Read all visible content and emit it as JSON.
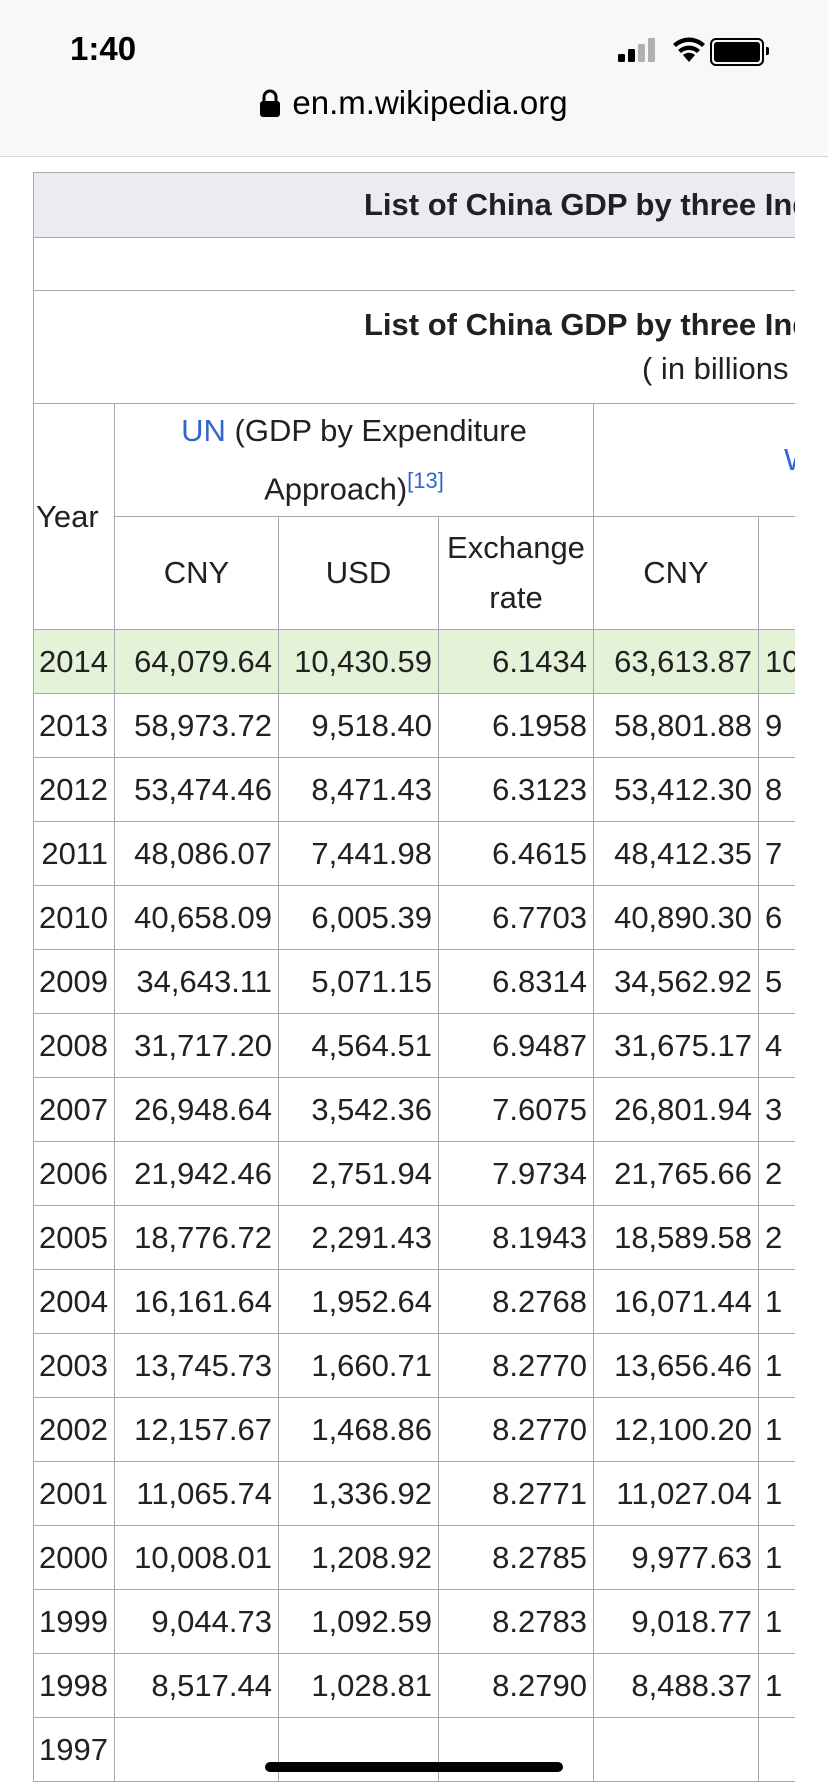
{
  "status": {
    "time": "1:40"
  },
  "browser": {
    "url": "en.m.wikipedia.org"
  },
  "table": {
    "title": "List of China GDP by three Industries",
    "subtitle": "( in billions",
    "group1": {
      "link": "UN",
      "text": " (GDP by Expenditure Approach)",
      "ref": "[13]"
    },
    "group2_link": "W",
    "year_header": "Year",
    "col_headers": [
      "CNY",
      "USD",
      "Exchange rate",
      "CNY",
      ""
    ],
    "rows": [
      [
        "2014",
        "64,079.64",
        "10,430.59",
        "6.1434",
        "63,613.87",
        "10"
      ],
      [
        "2013",
        "58,973.72",
        "9,518.40",
        "6.1958",
        "58,801.88",
        "9"
      ],
      [
        "2012",
        "53,474.46",
        "8,471.43",
        "6.3123",
        "53,412.30",
        "8"
      ],
      [
        "2011",
        "48,086.07",
        "7,441.98",
        "6.4615",
        "48,412.35",
        "7"
      ],
      [
        "2010",
        "40,658.09",
        "6,005.39",
        "6.7703",
        "40,890.30",
        "6"
      ],
      [
        "2009",
        "34,643.11",
        "5,071.15",
        "6.8314",
        "34,562.92",
        "5"
      ],
      [
        "2008",
        "31,717.20",
        "4,564.51",
        "6.9487",
        "31,675.17",
        "4"
      ],
      [
        "2007",
        "26,948.64",
        "3,542.36",
        "7.6075",
        "26,801.94",
        "3"
      ],
      [
        "2006",
        "21,942.46",
        "2,751.94",
        "7.9734",
        "21,765.66",
        "2"
      ],
      [
        "2005",
        "18,776.72",
        "2,291.43",
        "8.1943",
        "18,589.58",
        "2"
      ],
      [
        "2004",
        "16,161.64",
        "1,952.64",
        "8.2768",
        "16,071.44",
        "1"
      ],
      [
        "2003",
        "13,745.73",
        "1,660.71",
        "8.2770",
        "13,656.46",
        "1"
      ],
      [
        "2002",
        "12,157.67",
        "1,468.86",
        "8.2770",
        "12,100.20",
        "1"
      ],
      [
        "2001",
        "11,065.74",
        "1,336.92",
        "8.2771",
        "11,027.04",
        "1"
      ],
      [
        "2000",
        "10,008.01",
        "1,208.92",
        "8.2785",
        "9,977.63",
        "1"
      ],
      [
        "1999",
        "9,044.73",
        "1,092.59",
        "8.2783",
        "9,018.77",
        "1"
      ],
      [
        "1998",
        "8,517.44",
        "1,028.81",
        "8.2790",
        "8,488.37",
        "1"
      ],
      [
        "1997",
        "",
        "",
        "",
        "",
        ""
      ]
    ]
  }
}
